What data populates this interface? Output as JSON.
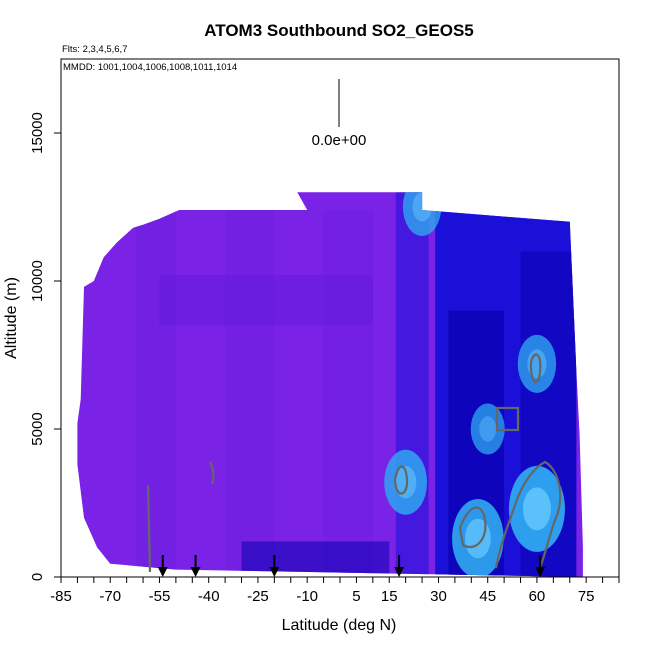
{
  "chart_data": {
    "type": "heatmap",
    "title": "ATOM3 Southbound SO2_GEOS5",
    "flights_note": "Flts: 2,3,4,5,6,7",
    "dates_note": "MMDD: 1001,1004,1006,1008,1011,1014",
    "xlabel": "Latitude (deg N)",
    "ylabel": "Altitude (m)",
    "xlim": [
      -85,
      85
    ],
    "ylim": [
      0,
      17500
    ],
    "x_ticks": [
      -85,
      -70,
      -55,
      -40,
      -25,
      -10,
      5,
      15,
      30,
      45,
      60,
      75
    ],
    "y_ticks": [
      0,
      5000,
      10000,
      15000
    ],
    "scale_label": "0.0e+00",
    "colors": {
      "background_fill": "#7a22e6",
      "mid": "#1a10d8",
      "dark": "#0a00b0",
      "light": "#2fa8f0",
      "contour": "#666666",
      "arrow": "#000000"
    },
    "arrow_latitudes": [
      -54,
      -44,
      -20,
      18,
      61
    ],
    "profile_upper_boundary": [
      [
        -80,
        5200
      ],
      [
        -79,
        6000
      ],
      [
        -78,
        9800
      ],
      [
        -75,
        10000
      ],
      [
        -72,
        10800
      ],
      [
        -68,
        11300
      ],
      [
        -63,
        11800
      ],
      [
        -60,
        11900
      ],
      [
        -55,
        12100
      ],
      [
        -49,
        12400
      ],
      [
        -10,
        12400
      ],
      [
        -13,
        13000
      ],
      [
        25,
        13000
      ],
      [
        25,
        12400
      ],
      [
        70,
        12000
      ],
      [
        72,
        7000
      ],
      [
        73,
        4800
      ],
      [
        74,
        1000
      ]
    ],
    "profile_lower_boundary": [
      [
        -80,
        3800
      ],
      [
        -78,
        2000
      ],
      [
        -74,
        1000
      ],
      [
        -70,
        450
      ],
      [
        -50,
        250
      ],
      [
        74,
        0
      ]
    ],
    "enhanced_regions": [
      {
        "lat": 60,
        "alt": 2300,
        "strength": 1.0
      },
      {
        "lat": 42,
        "alt": 1300,
        "strength": 0.9
      },
      {
        "lat": 20,
        "alt": 3200,
        "strength": 0.7
      },
      {
        "lat": 60,
        "alt": 7200,
        "strength": 0.6
      },
      {
        "lat": 25,
        "alt": 12500,
        "strength": 0.6
      },
      {
        "lat": 45,
        "alt": 5000,
        "strength": 0.5
      }
    ]
  }
}
